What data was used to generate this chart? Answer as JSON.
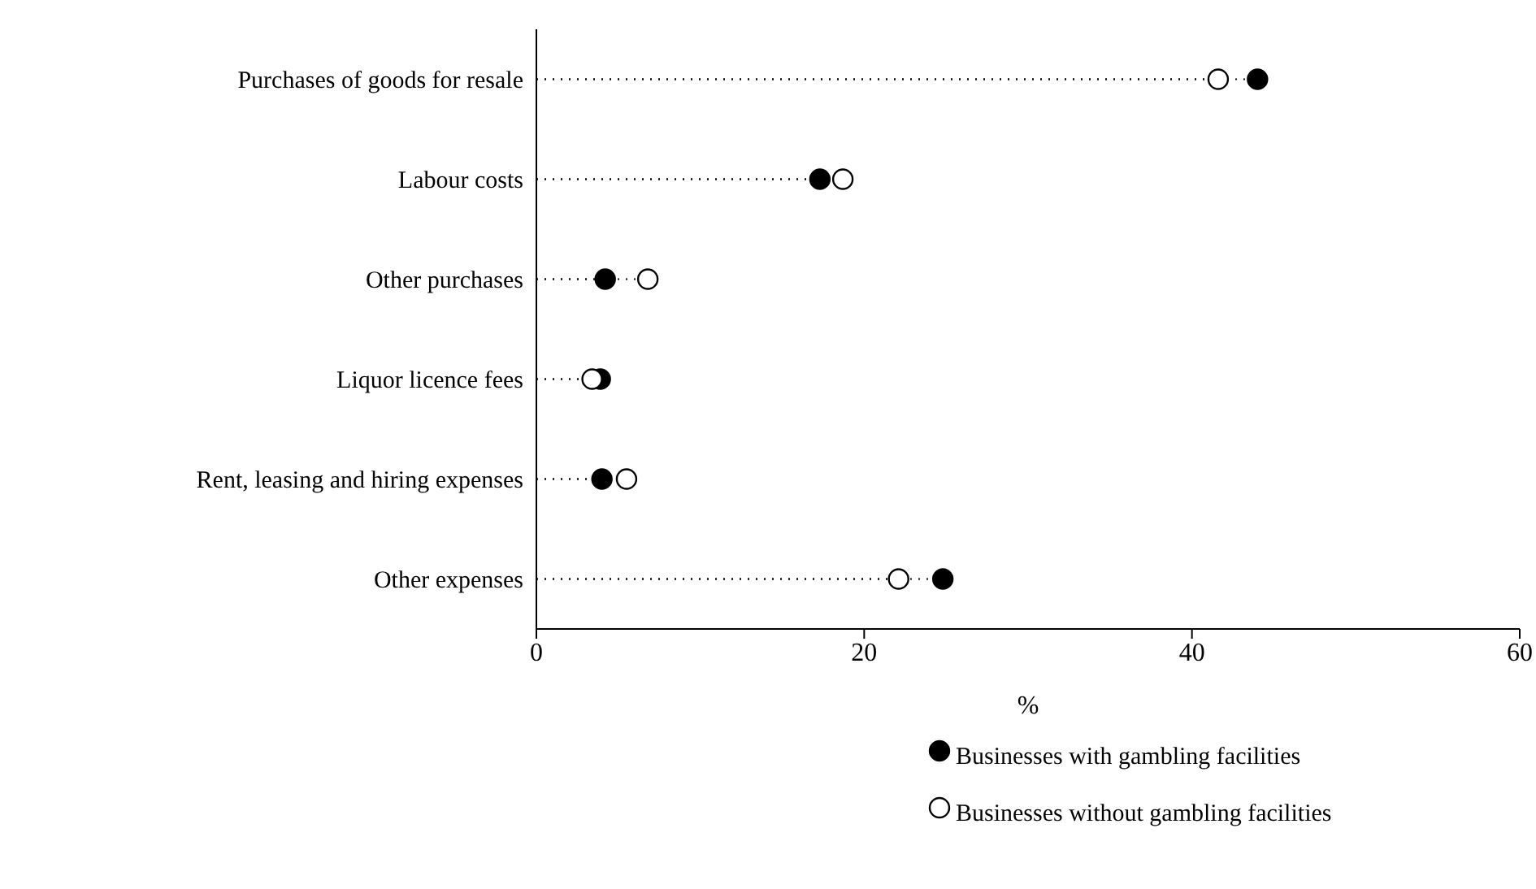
{
  "chart_data": {
    "type": "lollipop",
    "orientation": "horizontal",
    "xlabel": "%",
    "categories": [
      "Purchases of goods for resale",
      "Labour costs",
      "Other purchases",
      "Liquor licence fees",
      "Rent, leasing and hiring expenses",
      "Other expenses"
    ],
    "series": [
      {
        "name": "Businesses with gambling facilities",
        "color": "#000000",
        "values": [
          44,
          17.3,
          4.2,
          3.9,
          4.0,
          24.8
        ]
      },
      {
        "name": "Businesses without gambling facilities",
        "color": "#ffffff",
        "values": [
          41.6,
          18.7,
          6.8,
          3.4,
          5.5,
          22.1
        ]
      }
    ],
    "xlim": [
      0,
      60
    ],
    "xticks": [
      0,
      20,
      40,
      60
    ],
    "marker": "circle",
    "line_style": "dotted",
    "legend": "bottom right",
    "grid": false
  }
}
